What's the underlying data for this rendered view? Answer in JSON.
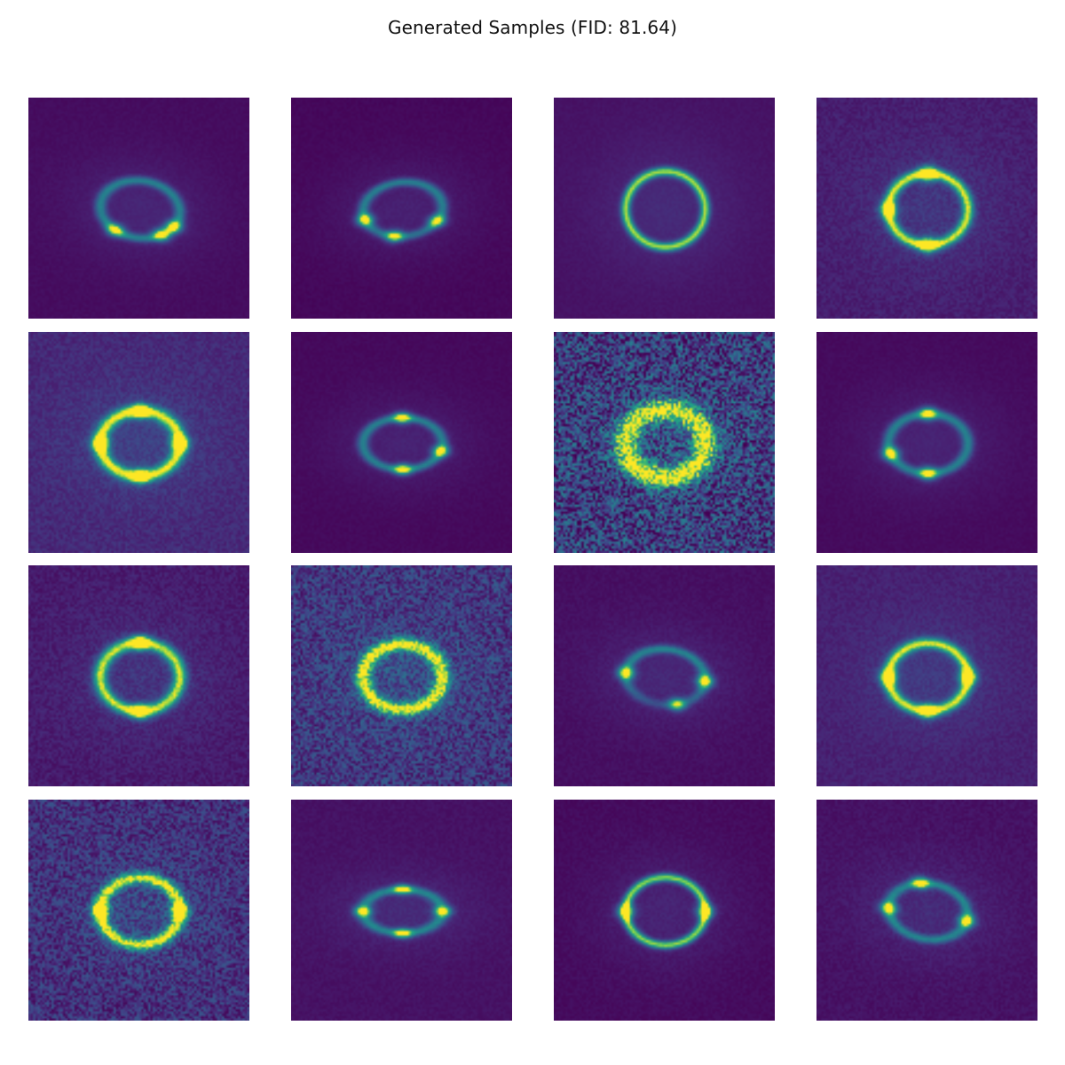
{
  "figure": {
    "title": "Generated Samples (FID: 81.64)"
  },
  "colors": {
    "colormap": "viridis",
    "dark": "#440154",
    "bright": "#fde725"
  },
  "samples": [
    {
      "type": "quad",
      "ar": 0.72,
      "rot": -8,
      "noise": 0.02,
      "bg": 0.08,
      "thick": 0.1,
      "arc": 0.0,
      "clumps": [
        0.9,
        0.45,
        2.15
      ]
    },
    {
      "type": "quad",
      "ar": 0.68,
      "rot": 6,
      "noise": 0.02,
      "bg": 0.05,
      "thick": 0.1,
      "arc": 0.1,
      "clumps": [
        0.6,
        1.85,
        2.9
      ]
    },
    {
      "type": "ring",
      "ar": 0.95,
      "rot": 0,
      "noise": 0.02,
      "bg": 0.12,
      "thick": 0.08,
      "arc": 0.0,
      "clumps": []
    },
    {
      "type": "ring",
      "ar": 0.9,
      "rot": 0,
      "noise": 0.06,
      "bg": 0.2,
      "thick": 0.1,
      "arc": 0.0,
      "clumps": [
        1.57,
        3.14,
        4.71
      ]
    },
    {
      "type": "ring",
      "ar": 0.82,
      "rot": 0,
      "noise": 0.07,
      "bg": 0.28,
      "thick": 0.13,
      "arc": 0.0,
      "clumps": [
        1.57,
        4.71,
        0.0,
        3.14
      ]
    },
    {
      "type": "quad",
      "ar": 0.65,
      "rot": 0,
      "noise": 0.02,
      "bg": 0.06,
      "thick": 0.1,
      "arc": 0.0,
      "clumps": [
        4.7,
        1.57,
        0.3
      ]
    },
    {
      "type": "ring",
      "ar": 0.85,
      "rot": 0,
      "noise": 0.38,
      "bg": 0.42,
      "thick": 0.2,
      "arc": 0.0,
      "clumps": []
    },
    {
      "type": "quad",
      "ar": 0.75,
      "rot": 0,
      "noise": 0.02,
      "bg": 0.07,
      "thick": 0.1,
      "arc": 0.0,
      "clumps": [
        4.71,
        1.57,
        2.8
      ]
    },
    {
      "type": "ring",
      "ar": 0.86,
      "rot": 0,
      "noise": 0.07,
      "bg": 0.18,
      "thick": 0.12,
      "arc": 0.0,
      "clumps": [
        1.57,
        4.71
      ]
    },
    {
      "type": "ring",
      "ar": 0.82,
      "rot": 0,
      "noise": 0.22,
      "bg": 0.38,
      "thick": 0.14,
      "arc": 0.0,
      "clumps": []
    },
    {
      "type": "quad",
      "ar": 0.7,
      "rot": -6,
      "noise": 0.03,
      "bg": 0.1,
      "thick": 0.1,
      "arc": 0.35,
      "clumps": [
        3.14,
        0.0,
        1.2
      ]
    },
    {
      "type": "ring",
      "ar": 0.85,
      "rot": 0,
      "noise": 0.05,
      "bg": 0.22,
      "thick": 0.11,
      "arc": 0.0,
      "clumps": [
        1.57,
        3.14,
        0.0
      ]
    },
    {
      "type": "ring",
      "ar": 0.84,
      "rot": 0,
      "noise": 0.2,
      "bg": 0.32,
      "thick": 0.12,
      "arc": 0.0,
      "clumps": [
        3.14,
        0.0
      ]
    },
    {
      "type": "cross",
      "ar": 0.55,
      "rot": 0,
      "noise": 0.03,
      "bg": 0.12,
      "thick": 0.12,
      "arc": 0.0,
      "clumps": [
        0.0,
        3.14,
        1.57,
        4.71
      ]
    },
    {
      "type": "ring",
      "ar": 0.85,
      "rot": 0,
      "noise": 0.03,
      "bg": 0.07,
      "thick": 0.08,
      "arc": 0.0,
      "clumps": [
        3.14,
        0.0
      ]
    },
    {
      "type": "quad",
      "ar": 0.7,
      "rot": -10,
      "noise": 0.04,
      "bg": 0.12,
      "thick": 0.1,
      "arc": 0.0,
      "clumps": [
        3.0,
        0.1,
        4.4
      ]
    }
  ]
}
